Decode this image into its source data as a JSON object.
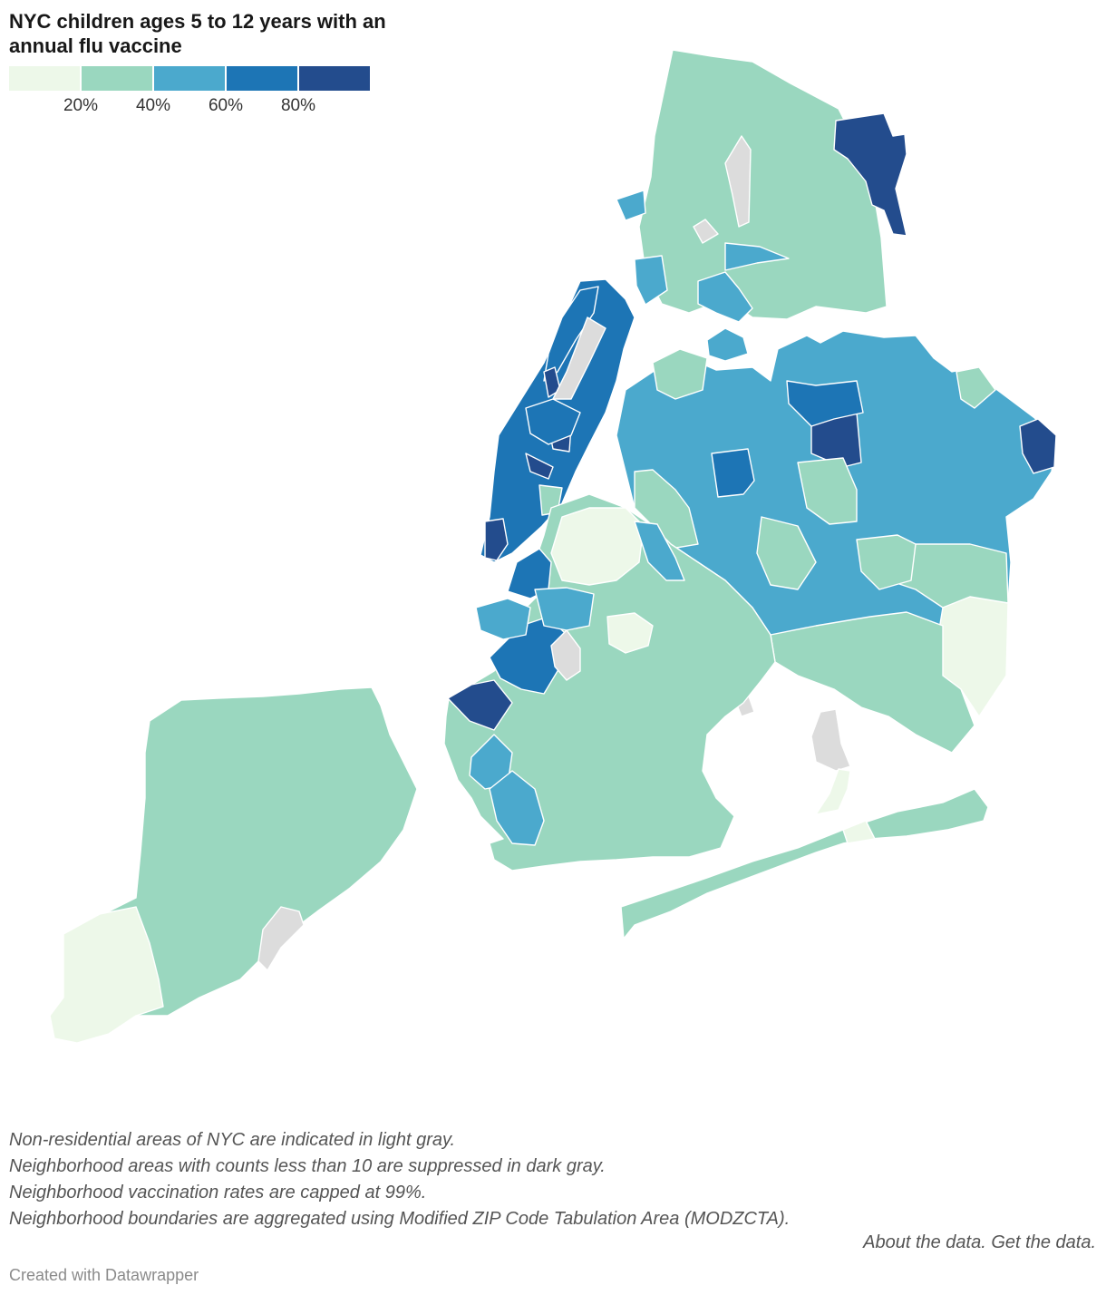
{
  "header": {
    "title": "NYC children ages 5 to 12 years with an annual flu vaccine"
  },
  "legend": {
    "colors": [
      "#edf8e9",
      "#9ad7bf",
      "#4ba9cd",
      "#1d75b5",
      "#234c8d"
    ],
    "ticks": [
      "20%",
      "40%",
      "60%",
      "80%"
    ],
    "bins": [
      [
        0,
        20
      ],
      [
        20,
        40
      ],
      [
        40,
        60
      ],
      [
        60,
        80
      ],
      [
        80,
        99
      ]
    ]
  },
  "map_colors": {
    "suppressed": "#dcdcdc",
    "nonresidential": "#e6e6e6",
    "stroke": "#ffffff",
    "water": "#ffffff"
  },
  "notes": {
    "line1": "Non-residential areas of NYC are indicated in light gray.",
    "line2": "Neighborhood areas with counts less than 10 are suppressed in dark gray.",
    "line3": "Neighborhood vaccination rates are capped at 99%.",
    "line4": "Neighborhood boundaries are aggregated using Modified ZIP Code Tabulation Area (MODZCTA)."
  },
  "links": {
    "about": "About the data.",
    "get": "Get the data."
  },
  "footer": {
    "credit": "Created with Datawrapper"
  }
}
